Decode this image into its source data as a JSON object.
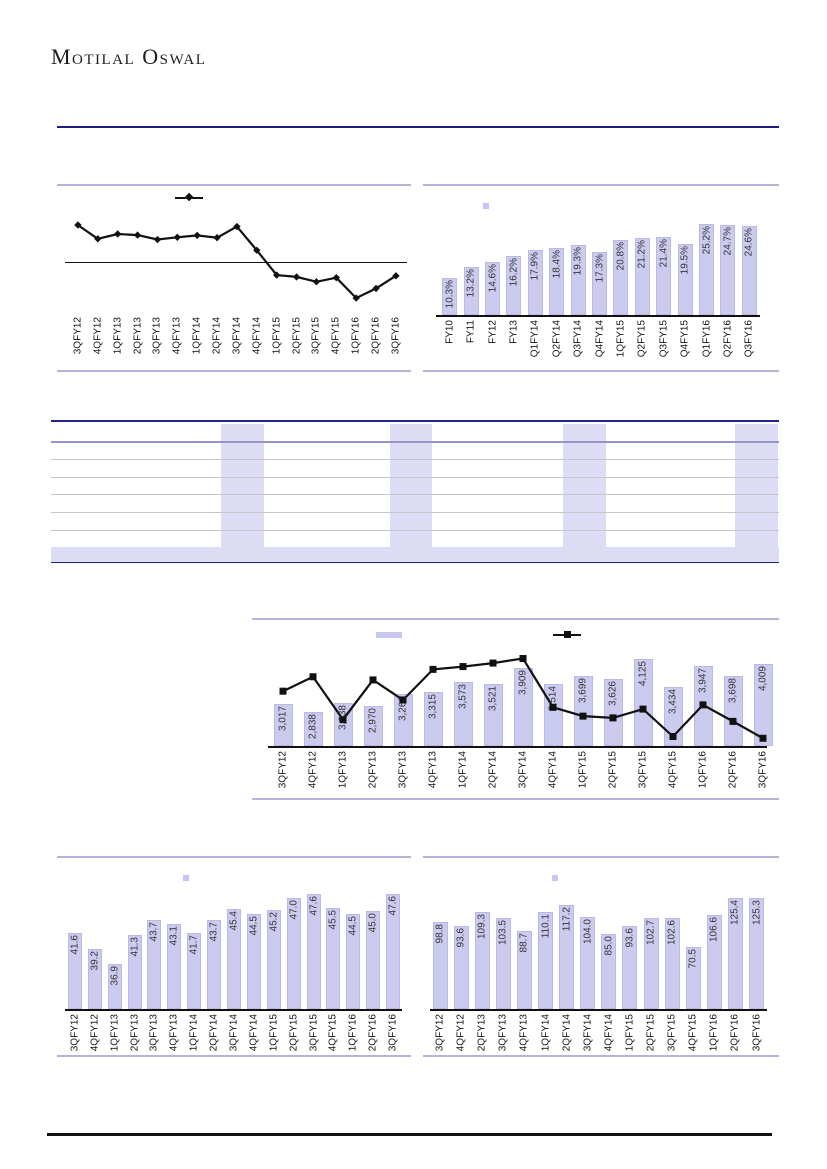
{
  "page": {
    "brand": "Motilal Oswal"
  },
  "table": {
    "visible_text": "",
    "header_rows": 1,
    "data_rows": 6,
    "has_total_row": true,
    "highlighted_column_count": 4,
    "highlight_color": "#dcdcf4",
    "border_color": "#22228a"
  },
  "colors": {
    "bar_fill": "#cbcbf0",
    "chart_border": "#b3b3de",
    "navy_rule": "#1b1b82",
    "line_series": "#111111"
  },
  "chart_data": [
    {
      "id": "top-left-quarterly-line",
      "type": "line",
      "title": "",
      "x": [
        "3QFY12",
        "4QFY12",
        "1QFY13",
        "2QFY13",
        "3QFY13",
        "4QFY13",
        "1QFY14",
        "2QFY14",
        "3QFY14",
        "4QFY14",
        "1QFY15",
        "2QFY15",
        "3QFY15",
        "4QFY15",
        "1QFY16",
        "2QFY16",
        "3QFY16"
      ],
      "series": [
        {
          "name": "quarterly-trend",
          "values": [
            10.0,
            6.3,
            7.6,
            7.3,
            6.1,
            6.7,
            7.2,
            6.6,
            9.6,
            3.2,
            -3.5,
            -4.0,
            -5.3,
            -4.2,
            -9.7,
            -7.1,
            -3.7
          ]
        }
      ],
      "ylim": [
        -14,
        20
      ],
      "zero_line": true,
      "marker": "diamond",
      "data_labels": false,
      "legend_position": "top",
      "note": "line values estimated from pixel positions; no axis labels shown"
    },
    {
      "id": "top-right-percent-bars",
      "type": "bar",
      "title": "",
      "categories": [
        "FY10",
        "FY11",
        "FY12",
        "FY13",
        "Q1FY14",
        "Q2FY14",
        "Q3FY14",
        "Q4FY14",
        "1QFY15",
        "Q2FY15",
        "Q3FY15",
        "Q4FY15",
        "Q1FY16",
        "Q2FY16",
        "Q3FY16"
      ],
      "values": [
        10.3,
        13.2,
        14.6,
        16.2,
        17.9,
        18.4,
        19.3,
        17.3,
        20.8,
        21.2,
        21.4,
        19.5,
        25.2,
        24.7,
        24.6
      ],
      "labels": [
        "10.3%",
        "13.2%",
        "14.6%",
        "16.2%",
        "17.9%",
        "18.4%",
        "19.3%",
        "17.3%",
        "20.8%",
        "21.2%",
        "21.4%",
        "19.5%",
        "25.2%",
        "24.7%",
        "24.6%"
      ],
      "ylim": [
        0,
        35
      ],
      "legend_position": "top",
      "data_labels": "inside-end-rotated"
    },
    {
      "id": "middle-combo",
      "type": "bar+line",
      "title": "",
      "categories": [
        "3QFY12",
        "4QFY12",
        "1QFY13",
        "2QFY13",
        "3QFY13",
        "4QFY13",
        "1QFY14",
        "2QFY14",
        "3QFY14",
        "4QFY14",
        "1QFY15",
        "2QFY15",
        "3QFY15",
        "4QFY15",
        "1QFY16",
        "2QFY16",
        "3QFY16"
      ],
      "series": [
        {
          "name": "bars",
          "type": "bar",
          "values": [
            3017,
            2838,
            3038,
            2970,
            3260,
            3315,
            3573,
            3521,
            3909,
            3514,
            3699,
            3626,
            4125,
            3434,
            3947,
            3698,
            4009
          ],
          "labels": [
            "3,017",
            "2,838",
            "3,038",
            "2,970",
            "3,260",
            "3,315",
            "3,573",
            "3,521",
            "3,909",
            "3,514",
            "3,699",
            "3,626",
            "4,125",
            "3,434",
            "3,947",
            "3,698",
            "4,009"
          ],
          "ylim": [
            2000,
            5000
          ]
        },
        {
          "name": "growth-line",
          "type": "line",
          "values": [
            10.6,
            14.7,
            2.5,
            13.8,
            8.1,
            16.8,
            17.6,
            18.6,
            19.9,
            6.0,
            3.5,
            3.0,
            5.5,
            -2.3,
            6.7,
            2.0,
            -2.8
          ],
          "ylim": [
            -5,
            30
          ],
          "marker": "square",
          "note": "secondary-axis line values estimated from pixel positions"
        }
      ],
      "legend_position": "top"
    },
    {
      "id": "bottom-left-bars",
      "type": "bar",
      "title": "",
      "categories": [
        "3QFY12",
        "4QFY12",
        "1QFY13",
        "2QFY13",
        "3QFY13",
        "4QFY13",
        "1QFY14",
        "2QFY14",
        "3QFY14",
        "4QFY14",
        "1QFY15",
        "2QFY15",
        "3QFY15",
        "4QFY15",
        "1QFY16",
        "2QFY16",
        "3QFY16"
      ],
      "values": [
        41.6,
        39.2,
        36.9,
        41.3,
        43.7,
        43.1,
        41.7,
        43.7,
        45.4,
        44.5,
        45.2,
        47.0,
        47.6,
        45.5,
        44.5,
        45.0,
        47.6
      ],
      "labels": [
        "41.6",
        "39.2",
        "36.9",
        "41.3",
        "43.7",
        "43.1",
        "41.7",
        "43.7",
        "45.4",
        "44.5",
        "45.2",
        "47.0",
        "47.6",
        "45.5",
        "44.5",
        "45.0",
        "47.6"
      ],
      "ylim": [
        30,
        51
      ],
      "legend_position": "top",
      "data_labels": "inside-end-rotated"
    },
    {
      "id": "bottom-right-bars",
      "type": "bar",
      "title": "",
      "categories": [
        "3QFY12",
        "4QFY12",
        "2QFY13",
        "3QFY13",
        "4QFY13",
        "1QFY14",
        "2QFY14",
        "3QFY14",
        "4QFY14",
        "1QFY15",
        "2QFY15",
        "3QFY15",
        "4QFY15",
        "1QFY16",
        "2QFY16",
        "3QFY16"
      ],
      "values": [
        98.8,
        93.6,
        109.3,
        103.5,
        88.7,
        110.1,
        117.2,
        104.0,
        85.0,
        93.6,
        102.7,
        102.6,
        70.5,
        106.6,
        125.4,
        125.3
      ],
      "labels": [
        "98.8",
        "93.6",
        "109.3",
        "103.5",
        "88.7",
        "110.1",
        "117.2",
        "104.0",
        "85.0",
        "93.6",
        "102.7",
        "102.6",
        "70.5",
        "106.6",
        "125.4",
        "125.3"
      ],
      "ylim": [
        0,
        155
      ],
      "legend_position": "top",
      "data_labels": "inside-end-rotated"
    }
  ]
}
